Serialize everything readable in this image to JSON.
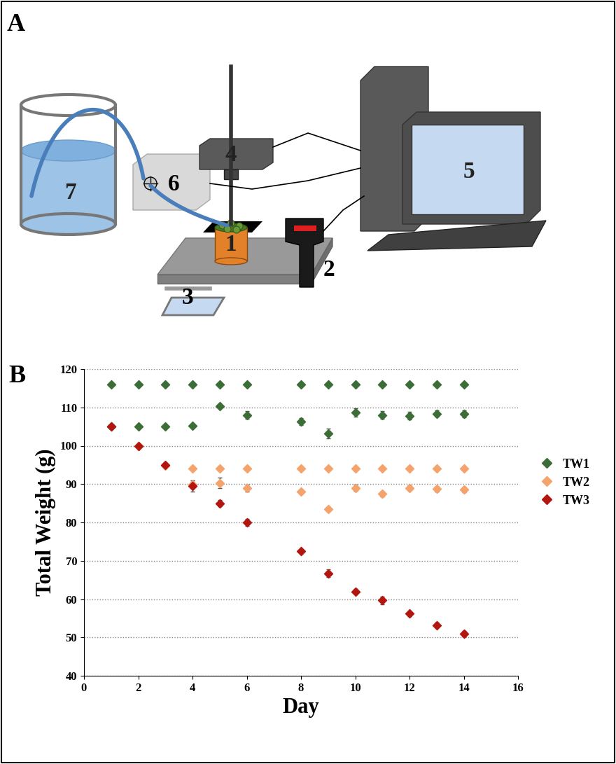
{
  "panel_a": {
    "label": "A",
    "parts": [
      "1",
      "2",
      "3",
      "4",
      "5",
      "6",
      "7"
    ]
  },
  "chart_data": {
    "label": "B",
    "type": "scatter",
    "x_label": "Day",
    "y_label": "Total Weight (g)",
    "xlim": [
      0,
      16
    ],
    "xticks": [
      0,
      2,
      4,
      6,
      8,
      10,
      12,
      14,
      16
    ],
    "ylim": [
      40,
      120
    ],
    "yticks": [
      40,
      50,
      60,
      70,
      80,
      90,
      100,
      110,
      120
    ],
    "grid": true,
    "legend": "right",
    "marker": "diamond",
    "series": [
      {
        "name": "TW1",
        "color": "#3b6e36",
        "x": [
          1,
          2,
          3,
          4,
          5,
          6,
          8,
          9,
          10,
          11,
          12,
          13,
          14,
          1,
          2,
          3,
          4,
          5,
          6,
          8,
          9,
          10,
          11,
          12,
          13,
          14
        ],
        "values": [
          116,
          116,
          116,
          116,
          116,
          116,
          116,
          116,
          116,
          116,
          116,
          116,
          116,
          105,
          105,
          105,
          105.2,
          110.3,
          108,
          106.3,
          103.2,
          108.6,
          108,
          107.8,
          108.4,
          108.3
        ],
        "errors": [
          0,
          0,
          0,
          0,
          0,
          0,
          0,
          0,
          0,
          0,
          0,
          0,
          0,
          0.3,
          0.3,
          0.3,
          0.6,
          0.6,
          1.0,
          1.0,
          1.2,
          1.1,
          1.0,
          1.0,
          0.8,
          0.9
        ]
      },
      {
        "name": "TW2",
        "color": "#f4a36c",
        "x": [
          4,
          5,
          6,
          8,
          9,
          10,
          11,
          12,
          13,
          14,
          2,
          3,
          4,
          5,
          6,
          8,
          9,
          10,
          11,
          12,
          13,
          14
        ],
        "values": [
          94,
          94,
          94,
          94,
          94,
          94,
          94,
          94,
          94,
          94,
          100,
          94.8,
          89.8,
          90.3,
          89,
          88,
          83.5,
          89,
          87.4,
          89,
          88.7,
          88.5
        ],
        "errors": [
          0,
          0,
          0,
          0,
          0,
          0,
          0,
          0,
          0,
          0,
          0.4,
          0.5,
          0.8,
          1.3,
          0.9,
          0.6,
          0.6,
          0.8,
          0.7,
          0.6,
          0.7,
          0.7
        ]
      },
      {
        "name": "TW3",
        "color": "#b3160f",
        "x": [
          1,
          2,
          3,
          4,
          5,
          6,
          8,
          9,
          10,
          11,
          12,
          13,
          14
        ],
        "values": [
          105,
          100,
          95,
          89.5,
          85,
          80,
          72.5,
          66.7,
          62,
          59.7,
          56.2,
          53.2,
          51
        ],
        "errors": [
          0.3,
          0.5,
          0.6,
          1.5,
          0.8,
          0.9,
          0.6,
          1.0,
          0.6,
          1.0,
          0.6,
          0.6,
          0.7
        ]
      }
    ]
  }
}
